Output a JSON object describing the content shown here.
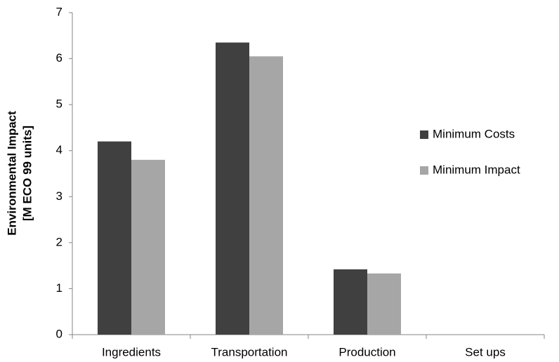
{
  "chart_data": {
    "type": "bar",
    "y_label": [
      "Environmental Impact",
      "[M ECO 99 units]"
    ],
    "categories": [
      "Ingredients",
      "Transportation",
      "Production",
      "Set ups"
    ],
    "series": [
      {
        "name": "Minimum Costs",
        "color": "#404040",
        "values": [
          4.2,
          6.35,
          1.42,
          0
        ]
      },
      {
        "name": "Minimum Impact",
        "color": "#a6a6a6",
        "values": [
          3.8,
          6.05,
          1.33,
          0
        ]
      }
    ],
    "ylim": [
      0,
      7
    ],
    "yticks": [
      0,
      1,
      2,
      3,
      4,
      5,
      6,
      7
    ],
    "grid": false,
    "legend": "right"
  }
}
